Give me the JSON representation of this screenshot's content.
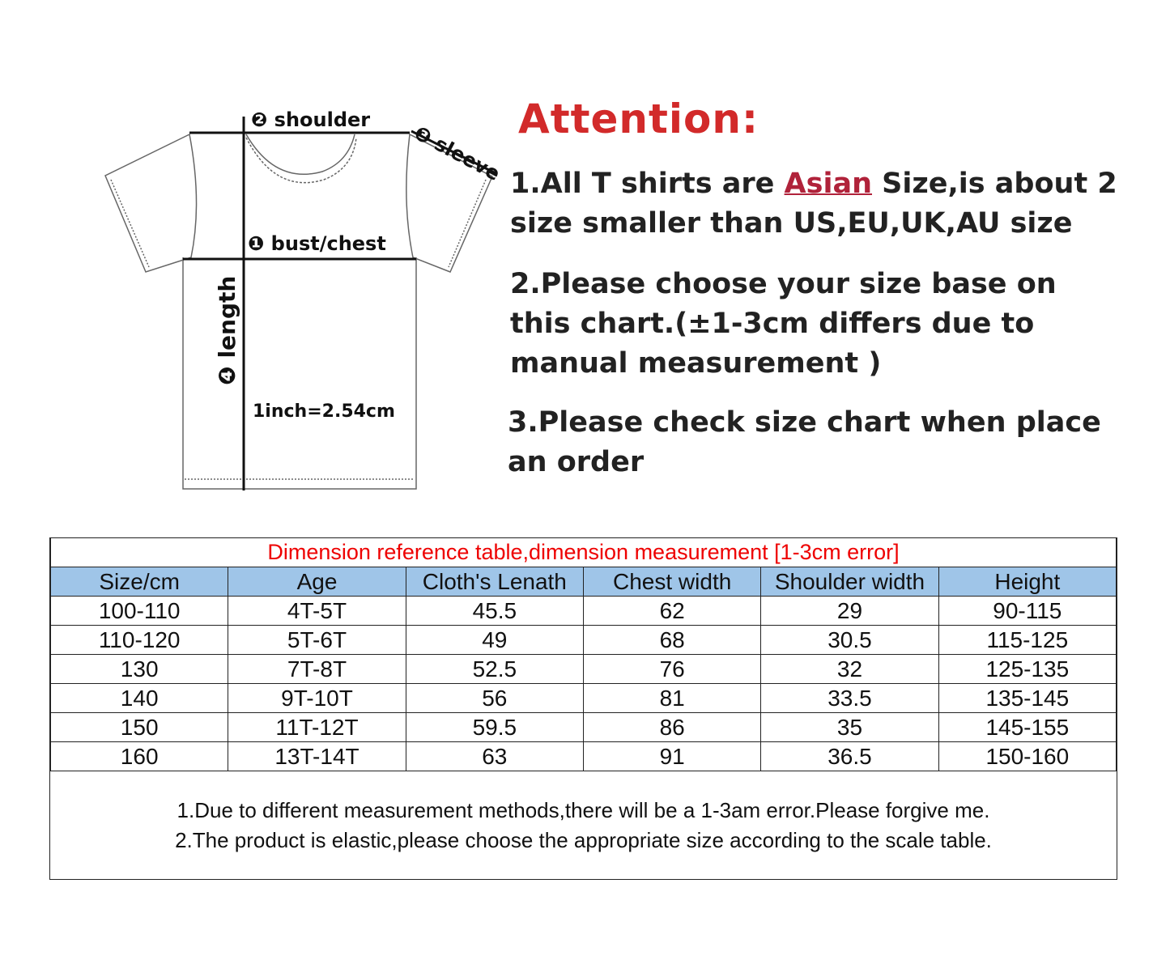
{
  "diagram": {
    "shoulder_label": "❷ shoulder",
    "sleeve_label": "❸ sleeve",
    "chest_label": "❶ bust/chest",
    "length_label": "❹ length",
    "conversion": "1inch=2.54cm"
  },
  "attention": {
    "title": "Attention:",
    "note1_pre": "1.All T shirts are ",
    "note1_highlight": "Asian",
    "note1_post": " Size,is about 2",
    "note1_line2": "size smaller than US,EU,UK,AU size",
    "note2_line1": "2.Please choose your size base on",
    "note2_line2": "this chart.(±1-3cm differs due to",
    "note2_line3": "manual measurement )",
    "note3_line1": "3.Please check size chart when place",
    "note3_line2": "an order"
  },
  "table": {
    "title": "Dimension reference table,dimension measurement [1-3cm error]",
    "headers": [
      "Size/cm",
      "Age",
      "Cloth's Lenath",
      "Chest width",
      "Shoulder width",
      "Height"
    ],
    "rows": [
      [
        "100-110",
        "4T-5T",
        "45.5",
        "62",
        "29",
        "90-115"
      ],
      [
        "110-120",
        "5T-6T",
        "49",
        "68",
        "30.5",
        "115-125"
      ],
      [
        "130",
        "7T-8T",
        "52.5",
        "76",
        "32",
        "125-135"
      ],
      [
        "140",
        "9T-10T",
        "56",
        "81",
        "33.5",
        "135-145"
      ],
      [
        "150",
        "11T-12T",
        "59.5",
        "86",
        "35",
        "145-155"
      ],
      [
        "160",
        "13T-14T",
        "63",
        "91",
        "36.5",
        "150-160"
      ]
    ],
    "notes": [
      "1.Due to different measurement methods,there will be a 1-3am error.Please forgive me.",
      "2.The product is elastic,please choose the appropriate size according to the scale table."
    ]
  },
  "colors": {
    "title_red": "#d22a2a",
    "header_blue": "#9fc5e8",
    "table_title_red": "#ee0000"
  }
}
